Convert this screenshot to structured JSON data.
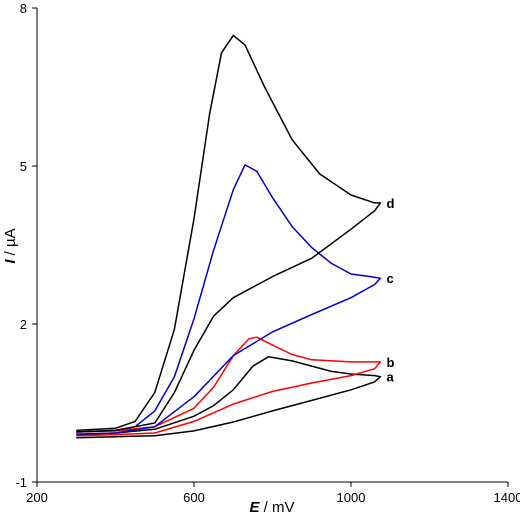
{
  "chart_data": {
    "type": "line",
    "title": "",
    "xlabel": {
      "italic": "E",
      "rest": " / mV"
    },
    "ylabel": {
      "italic": "I",
      "rest": " / µA"
    },
    "xlim": [
      200,
      1400
    ],
    "ylim": [
      -1,
      8
    ],
    "xticks": [
      "200",
      "600",
      "1000",
      "1400"
    ],
    "yticks": [
      "-1",
      "2",
      "5",
      "8"
    ],
    "grid": false,
    "legend": "none",
    "series": [
      {
        "label": "a",
        "color": "#000000",
        "points": [
          [
            300,
            -0.1
          ],
          [
            400,
            -0.07
          ],
          [
            500,
            0.0
          ],
          [
            600,
            0.25
          ],
          [
            650,
            0.45
          ],
          [
            700,
            0.75
          ],
          [
            750,
            1.2
          ],
          [
            790,
            1.38
          ],
          [
            850,
            1.3
          ],
          [
            950,
            1.1
          ],
          [
            1000,
            1.05
          ],
          [
            1060,
            1.02
          ],
          [
            1075,
            1.0
          ],
          [
            1060,
            0.9
          ],
          [
            1000,
            0.75
          ],
          [
            900,
            0.55
          ],
          [
            800,
            0.35
          ],
          [
            700,
            0.14
          ],
          [
            600,
            -0.03
          ],
          [
            500,
            -0.12
          ],
          [
            400,
            -0.14
          ],
          [
            300,
            -0.16
          ]
        ]
      },
      {
        "label": "b",
        "color": "#ff0000",
        "points": [
          [
            300,
            -0.05
          ],
          [
            400,
            -0.03
          ],
          [
            500,
            0.05
          ],
          [
            600,
            0.4
          ],
          [
            650,
            0.8
          ],
          [
            700,
            1.4
          ],
          [
            740,
            1.72
          ],
          [
            760,
            1.75
          ],
          [
            800,
            1.6
          ],
          [
            850,
            1.42
          ],
          [
            900,
            1.32
          ],
          [
            1000,
            1.28
          ],
          [
            1060,
            1.28
          ],
          [
            1075,
            1.28
          ],
          [
            1060,
            1.15
          ],
          [
            1000,
            1.02
          ],
          [
            900,
            0.88
          ],
          [
            800,
            0.72
          ],
          [
            700,
            0.48
          ],
          [
            600,
            0.15
          ],
          [
            500,
            -0.07
          ],
          [
            400,
            -0.1
          ],
          [
            300,
            -0.12
          ]
        ]
      },
      {
        "label": "c",
        "color": "#0000c8",
        "points": [
          [
            300,
            -0.05
          ],
          [
            400,
            -0.02
          ],
          [
            450,
            0.05
          ],
          [
            500,
            0.35
          ],
          [
            550,
            1.0
          ],
          [
            600,
            2.1
          ],
          [
            650,
            3.4
          ],
          [
            700,
            4.55
          ],
          [
            730,
            5.02
          ],
          [
            760,
            4.9
          ],
          [
            800,
            4.4
          ],
          [
            850,
            3.85
          ],
          [
            900,
            3.45
          ],
          [
            950,
            3.15
          ],
          [
            1000,
            2.95
          ],
          [
            1050,
            2.9
          ],
          [
            1075,
            2.87
          ],
          [
            1060,
            2.75
          ],
          [
            1000,
            2.5
          ],
          [
            900,
            2.18
          ],
          [
            800,
            1.85
          ],
          [
            700,
            1.4
          ],
          [
            600,
            0.62
          ],
          [
            500,
            0.05
          ],
          [
            400,
            -0.07
          ],
          [
            300,
            -0.09
          ]
        ]
      },
      {
        "label": "d",
        "color": "#000000",
        "points": [
          [
            300,
            -0.02
          ],
          [
            400,
            0.02
          ],
          [
            450,
            0.15
          ],
          [
            500,
            0.7
          ],
          [
            550,
            1.9
          ],
          [
            600,
            4.0
          ],
          [
            640,
            6.0
          ],
          [
            670,
            7.15
          ],
          [
            700,
            7.48
          ],
          [
            730,
            7.3
          ],
          [
            780,
            6.5
          ],
          [
            850,
            5.5
          ],
          [
            920,
            4.85
          ],
          [
            1000,
            4.45
          ],
          [
            1060,
            4.3
          ],
          [
            1075,
            4.3
          ],
          [
            1060,
            4.15
          ],
          [
            1000,
            3.8
          ],
          [
            900,
            3.25
          ],
          [
            800,
            2.9
          ],
          [
            700,
            2.5
          ],
          [
            650,
            2.15
          ],
          [
            600,
            1.5
          ],
          [
            550,
            0.7
          ],
          [
            500,
            0.12
          ],
          [
            400,
            -0.02
          ],
          [
            300,
            -0.05
          ]
        ]
      }
    ]
  }
}
